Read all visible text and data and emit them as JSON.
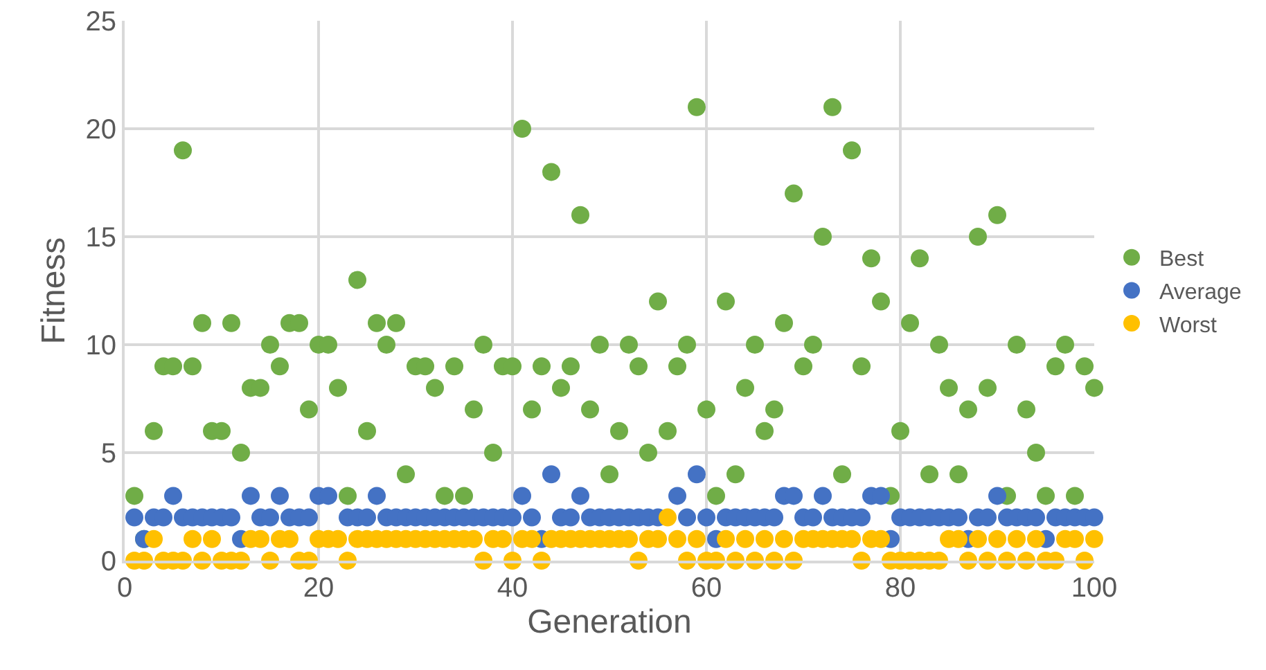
{
  "chart_data": {
    "type": "scatter",
    "xlabel": "Generation",
    "ylabel": "Fitness",
    "x": [
      1,
      2,
      3,
      4,
      5,
      6,
      7,
      8,
      9,
      10,
      11,
      12,
      13,
      14,
      15,
      16,
      17,
      18,
      19,
      20,
      21,
      22,
      23,
      24,
      25,
      26,
      27,
      28,
      29,
      30,
      31,
      32,
      33,
      34,
      35,
      36,
      37,
      38,
      39,
      40,
      41,
      42,
      43,
      44,
      45,
      46,
      47,
      48,
      49,
      50,
      51,
      52,
      53,
      54,
      55,
      56,
      57,
      58,
      59,
      60,
      61,
      62,
      63,
      64,
      65,
      66,
      67,
      68,
      69,
      70,
      71,
      72,
      73,
      74,
      75,
      76,
      77,
      78,
      79,
      80,
      81,
      82,
      83,
      84,
      85,
      86,
      87,
      88,
      89,
      90,
      91,
      92,
      93,
      94,
      95,
      96,
      97,
      98,
      99,
      100
    ],
    "series": [
      {
        "name": "Best",
        "color": "#70ad47",
        "values": [
          3,
          1,
          6,
          9,
          9,
          19,
          9,
          11,
          6,
          6,
          11,
          5,
          8,
          8,
          10,
          9,
          11,
          11,
          7,
          10,
          10,
          8,
          3,
          13,
          6,
          11,
          10,
          11,
          4,
          9,
          9,
          8,
          3,
          9,
          3,
          7,
          10,
          5,
          9,
          9,
          20,
          7,
          9,
          18,
          8,
          9,
          16,
          7,
          10,
          4,
          6,
          10,
          9,
          5,
          12,
          6,
          9,
          10,
          21,
          7,
          3,
          12,
          4,
          8,
          10,
          6,
          7,
          11,
          17,
          9,
          10,
          15,
          21,
          4,
          19,
          9,
          14,
          12,
          3,
          6,
          11,
          14,
          4,
          10,
          8,
          4,
          7,
          15,
          8,
          16,
          3,
          10,
          7,
          5,
          3,
          9,
          10,
          3,
          9,
          8
        ]
      },
      {
        "name": "Average",
        "color": "#4472c4",
        "values": [
          2,
          1,
          2,
          2,
          3,
          2,
          2,
          2,
          2,
          2,
          2,
          1,
          3,
          2,
          2,
          3,
          2,
          2,
          2,
          3,
          3,
          null,
          2,
          2,
          2,
          3,
          2,
          2,
          2,
          2,
          2,
          2,
          2,
          2,
          2,
          2,
          2,
          2,
          2,
          2,
          3,
          2,
          1,
          4,
          2,
          2,
          3,
          2,
          2,
          2,
          2,
          2,
          2,
          2,
          2,
          null,
          3,
          2,
          4,
          2,
          1,
          2,
          2,
          2,
          2,
          2,
          2,
          3,
          3,
          2,
          2,
          3,
          2,
          2,
          2,
          2,
          3,
          3,
          1,
          2,
          2,
          2,
          2,
          2,
          2,
          2,
          1,
          2,
          2,
          3,
          2,
          2,
          2,
          2,
          1,
          2,
          2,
          2,
          2,
          2
        ]
      },
      {
        "name": "Worst",
        "color": "#ffc000",
        "values": [
          0,
          0,
          1,
          0,
          0,
          0,
          1,
          0,
          1,
          0,
          0,
          0,
          1,
          1,
          0,
          1,
          1,
          0,
          0,
          1,
          1,
          1,
          0,
          1,
          1,
          1,
          1,
          1,
          1,
          1,
          1,
          1,
          1,
          1,
          1,
          1,
          0,
          1,
          1,
          0,
          1,
          1,
          0,
          1,
          1,
          1,
          1,
          1,
          1,
          1,
          1,
          1,
          0,
          1,
          1,
          2,
          1,
          0,
          1,
          0,
          0,
          1,
          0,
          1,
          0,
          1,
          0,
          1,
          0,
          1,
          1,
          1,
          1,
          1,
          1,
          0,
          1,
          1,
          0,
          0,
          0,
          0,
          0,
          0,
          1,
          1,
          0,
          1,
          0,
          1,
          0,
          1,
          0,
          1,
          0,
          0,
          1,
          1,
          0,
          1
        ]
      }
    ],
    "xlim": [
      0,
      100
    ],
    "xticks": [
      0,
      20,
      40,
      60,
      80,
      100
    ],
    "ylim": [
      0,
      25
    ],
    "yticks": [
      0,
      5,
      10,
      15,
      20,
      25
    ],
    "grid": true,
    "legend": "right",
    "marker": "circle"
  }
}
